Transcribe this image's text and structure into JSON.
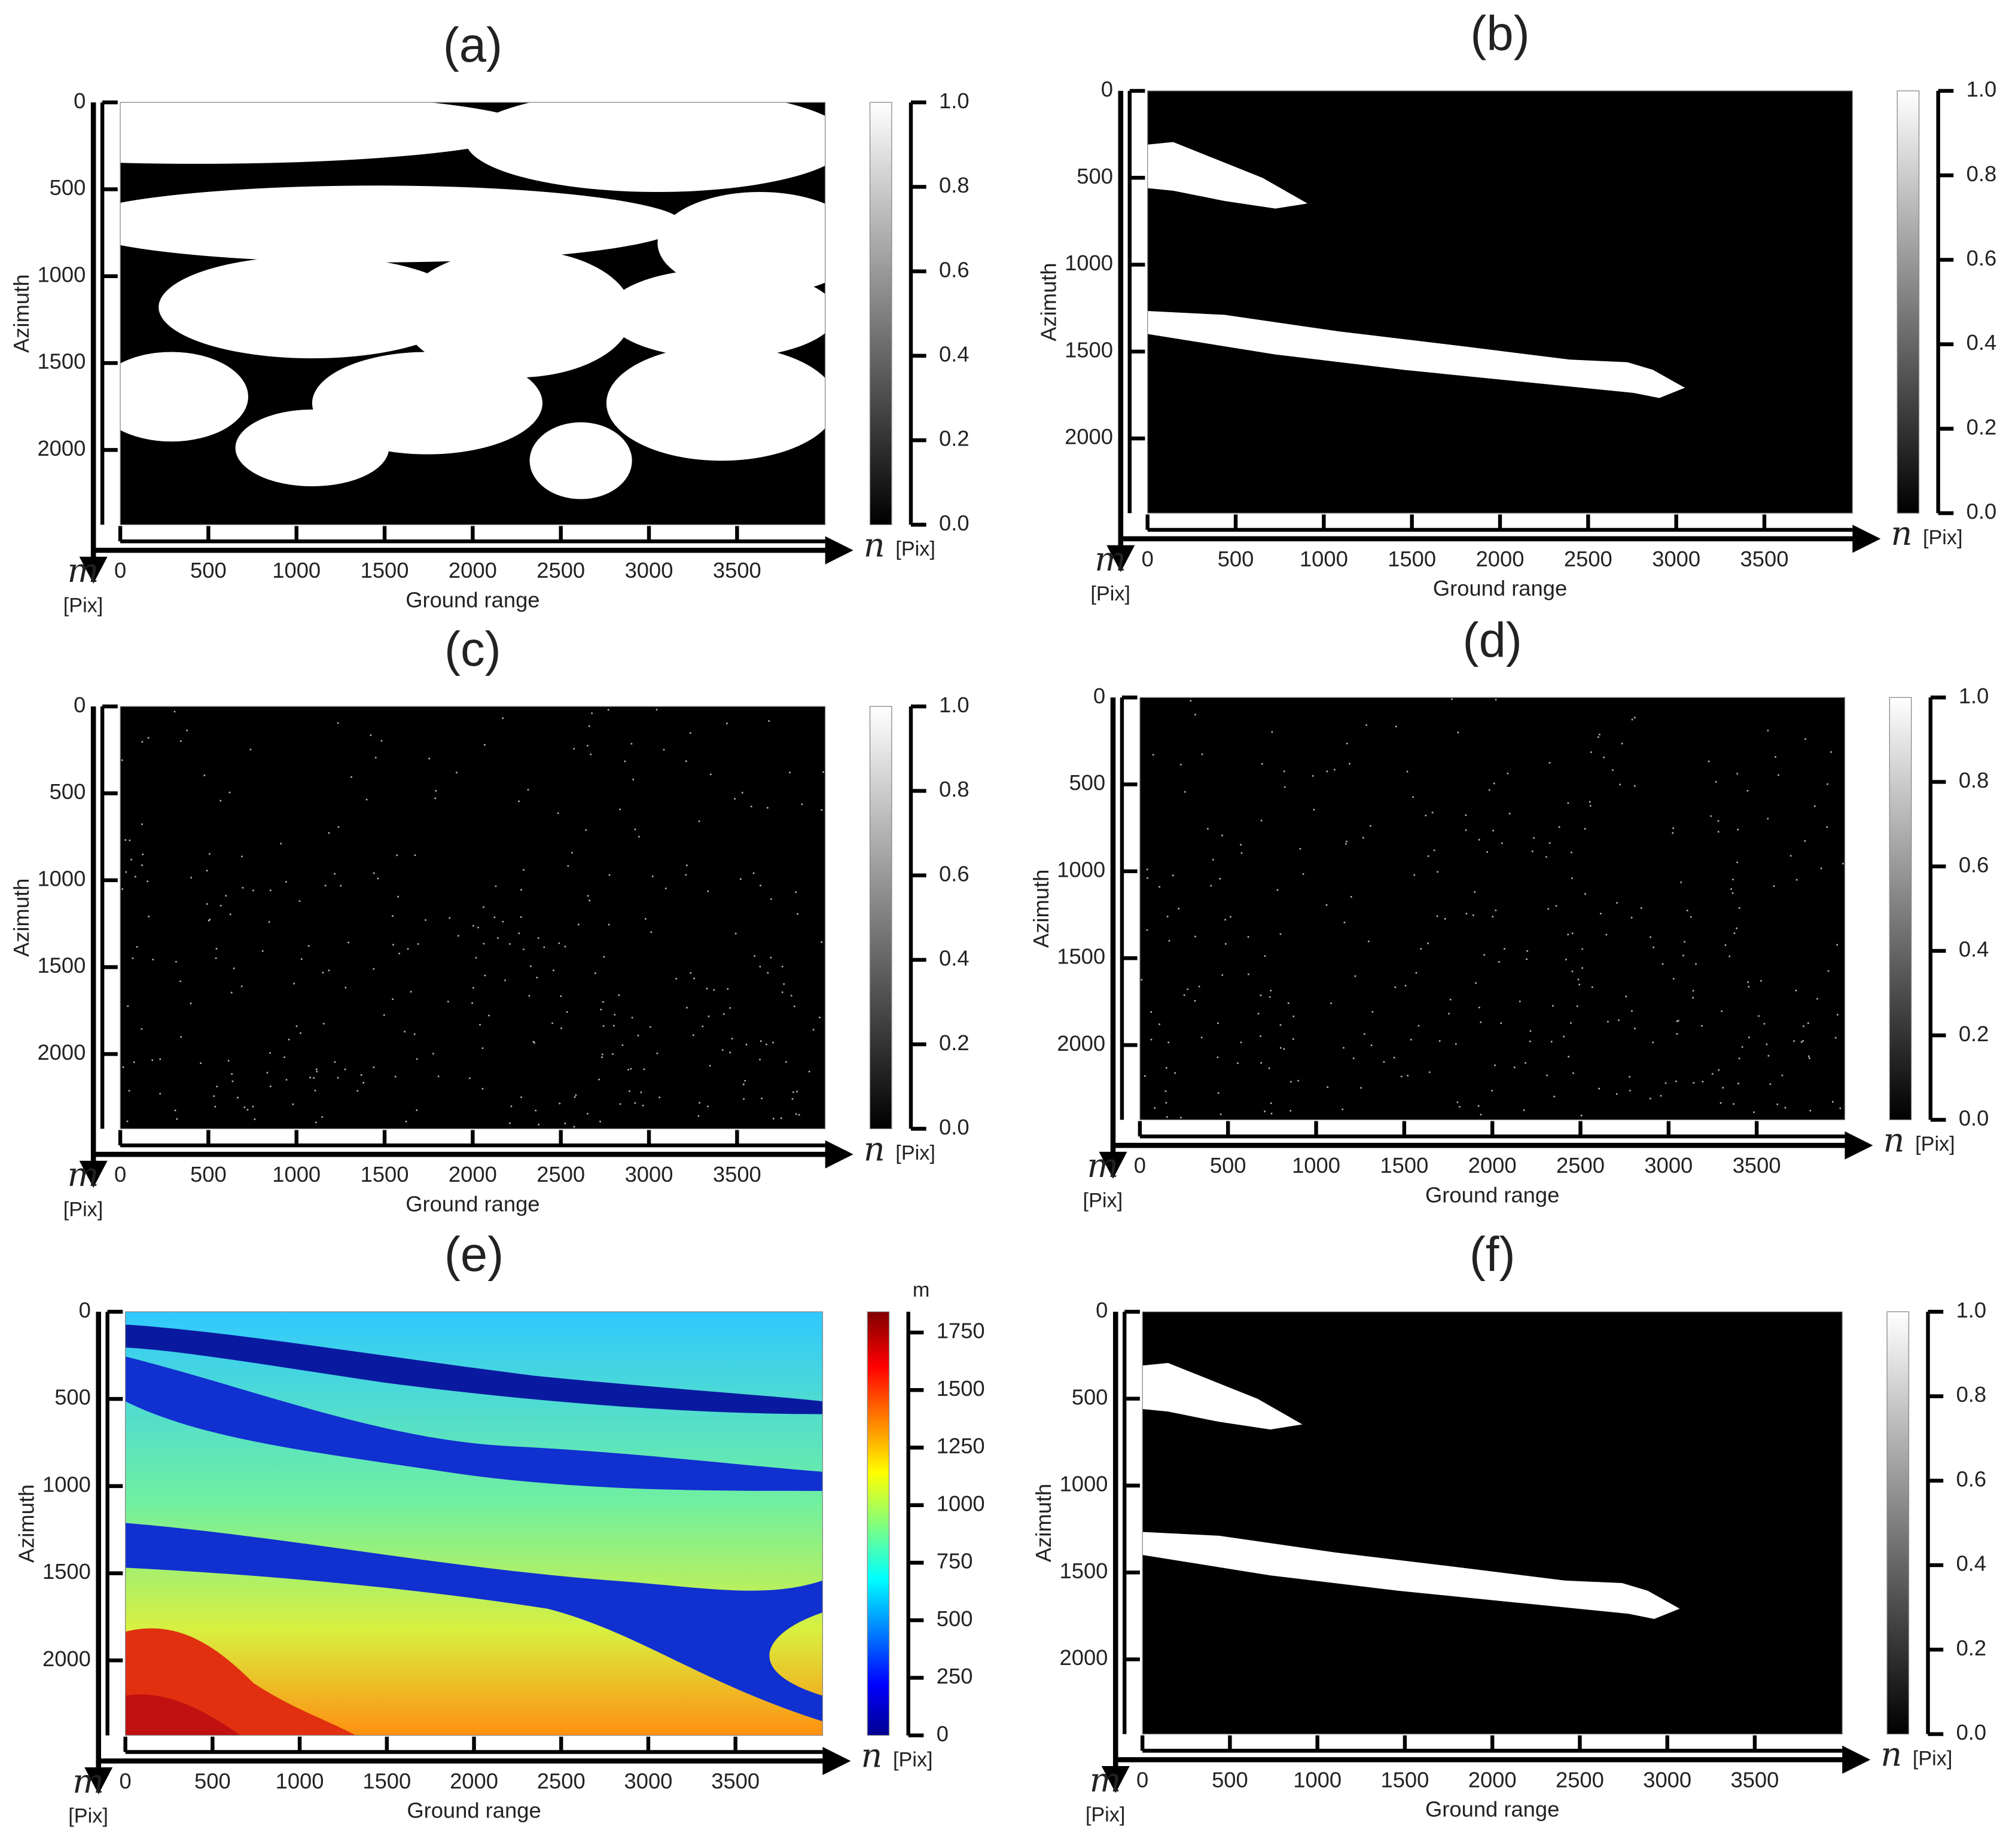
{
  "chart_data": [
    {
      "type": "heatmap",
      "title": "(a)",
      "x_label": "Ground range",
      "y_label": "Azimuth",
      "x_symbol": "n",
      "x_unit": "[Pix]",
      "y_symbol": "m",
      "y_unit": "[Pix]",
      "xlim": [
        0,
        4000
      ],
      "ylim": [
        0,
        2430
      ],
      "xticks": [
        0,
        500,
        1000,
        1500,
        2000,
        2500,
        3000,
        3500
      ],
      "yticks": [
        0,
        500,
        1000,
        1500,
        2000
      ],
      "colormap": "gray",
      "colorbar": {
        "lim": [
          0,
          1
        ],
        "ticks": [
          {
            "value": 0,
            "label": "0.0"
          },
          0.2,
          0.4,
          0.6,
          0.8,
          {
            "value": 1,
            "label": "1.0"
          }
        ]
      }
    },
    {
      "type": "heatmap",
      "title": "(b)",
      "x_label": "Ground range",
      "y_label": "Azimuth",
      "x_symbol": "n",
      "x_unit": "[Pix]",
      "y_symbol": "m",
      "y_unit": "[Pix]",
      "xlim": [
        0,
        4000
      ],
      "ylim": [
        0,
        2430
      ],
      "xticks": [
        0,
        500,
        1000,
        1500,
        2000,
        2500,
        3000,
        3500
      ],
      "yticks": [
        0,
        500,
        1000,
        1500,
        2000
      ],
      "colormap": "gray",
      "colorbar": {
        "lim": [
          0,
          1
        ],
        "ticks": [
          {
            "value": 0,
            "label": "0.0"
          },
          0.2,
          0.4,
          0.6,
          0.8,
          {
            "value": 1,
            "label": "1.0"
          }
        ]
      }
    },
    {
      "type": "heatmap",
      "title": "(c)",
      "x_label": "Ground range",
      "y_label": "Azimuth",
      "x_symbol": "n",
      "x_unit": "[Pix]",
      "y_symbol": "m",
      "y_unit": "[Pix]",
      "xlim": [
        0,
        4000
      ],
      "ylim": [
        0,
        2430
      ],
      "xticks": [
        0,
        500,
        1000,
        1500,
        2000,
        2500,
        3000,
        3500
      ],
      "yticks": [
        0,
        500,
        1000,
        1500,
        2000
      ],
      "colormap": "gray",
      "colorbar": {
        "lim": [
          0,
          1
        ],
        "ticks": [
          {
            "value": 0,
            "label": "0.0"
          },
          0.2,
          0.4,
          0.6,
          0.8,
          {
            "value": 1,
            "label": "1.0"
          }
        ]
      }
    },
    {
      "type": "heatmap",
      "title": "(d)",
      "x_label": "Ground range",
      "y_label": "Azimuth",
      "x_symbol": "n",
      "x_unit": "[Pix]",
      "y_symbol": "m",
      "y_unit": "[Pix]",
      "xlim": [
        0,
        4000
      ],
      "ylim": [
        0,
        2430
      ],
      "xticks": [
        0,
        500,
        1000,
        1500,
        2000,
        2500,
        3000,
        3500
      ],
      "yticks": [
        0,
        500,
        1000,
        1500,
        2000
      ],
      "colormap": "gray",
      "colorbar": {
        "lim": [
          0,
          1
        ],
        "ticks": [
          {
            "value": 0,
            "label": "0.0"
          },
          0.2,
          0.4,
          0.6,
          0.8,
          {
            "value": 1,
            "label": "1.0"
          }
        ]
      }
    },
    {
      "type": "heatmap",
      "title": "(e)",
      "x_label": "Ground range",
      "y_label": "Azimuth",
      "x_symbol": "n",
      "x_unit": "[Pix]",
      "y_symbol": "m",
      "y_unit": "[Pix]",
      "xlim": [
        0,
        4000
      ],
      "ylim": [
        0,
        2430
      ],
      "xticks": [
        0,
        500,
        1000,
        1500,
        2000,
        2500,
        3000,
        3500
      ],
      "yticks": [
        0,
        500,
        1000,
        1500,
        2000
      ],
      "colormap": "jet",
      "colorbar": {
        "label": "m",
        "lim": [
          0,
          1840
        ],
        "ticks": [
          0,
          250,
          500,
          750,
          1000,
          1250,
          1500,
          1750
        ]
      }
    },
    {
      "type": "heatmap",
      "title": "(f)",
      "x_label": "Ground range",
      "y_label": "Azimuth",
      "x_symbol": "n",
      "x_unit": "[Pix]",
      "y_symbol": "m",
      "y_unit": "[Pix]",
      "xlim": [
        0,
        4000
      ],
      "ylim": [
        0,
        2430
      ],
      "xticks": [
        0,
        500,
        1000,
        1500,
        2000,
        2500,
        3000,
        3500
      ],
      "yticks": [
        0,
        500,
        1000,
        1500,
        2000
      ],
      "colormap": "gray",
      "colorbar": {
        "lim": [
          0,
          1
        ],
        "ticks": [
          {
            "value": 0,
            "label": "0.0"
          },
          0.2,
          0.4,
          0.6,
          0.8,
          {
            "value": 1,
            "label": "1.0"
          }
        ]
      }
    }
  ]
}
